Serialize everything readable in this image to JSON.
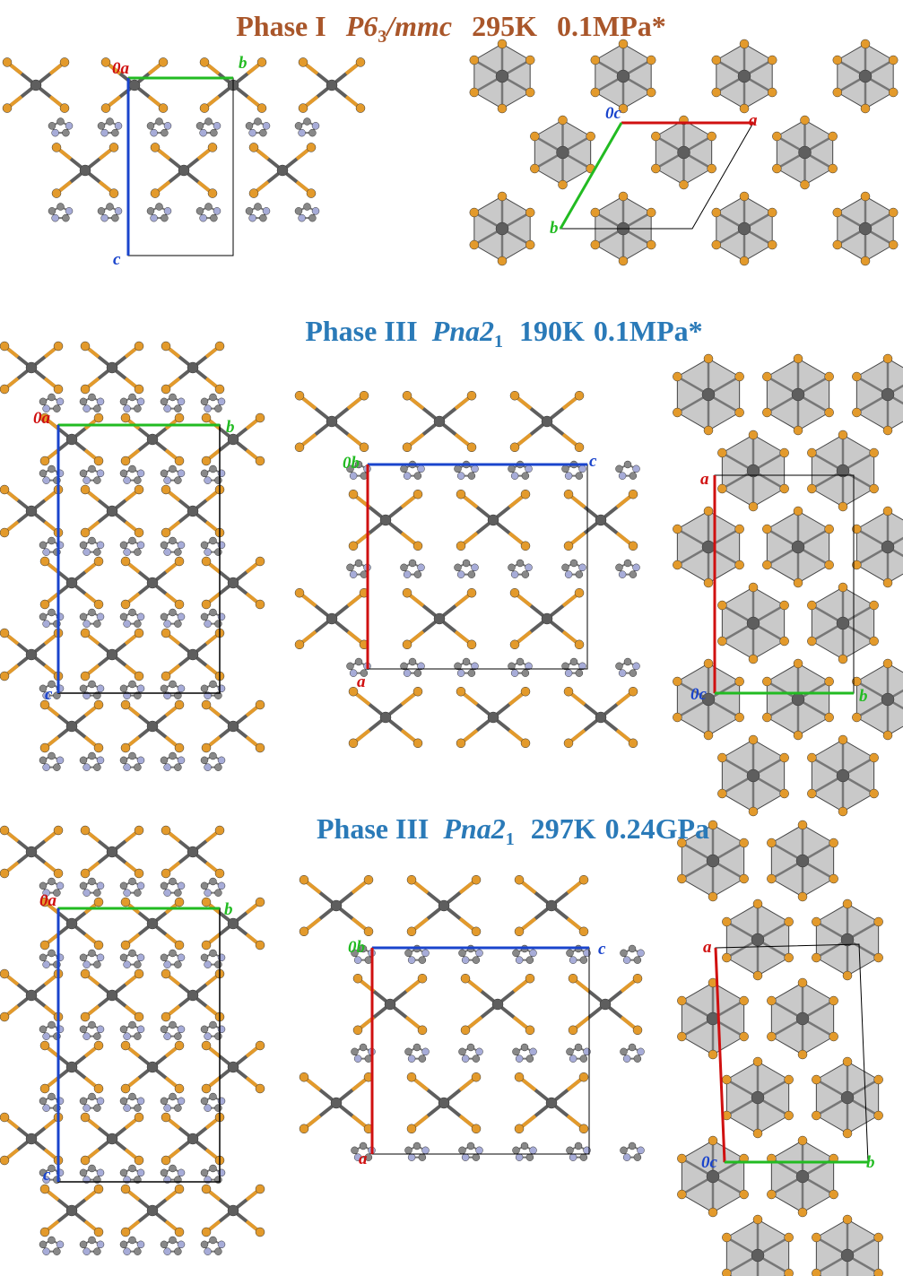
{
  "sections": [
    {
      "title": {
        "phase": "Phase I",
        "space_group": {
          "symbol": "P6",
          "subscript": "3",
          "suffix": "/mmc"
        },
        "temperature": "295K",
        "pressure": "0.1MPa*"
      },
      "views": [
        {
          "labels": [
            "0a",
            "b",
            "c"
          ]
        },
        {
          "labels": [
            "0c",
            "a",
            "b"
          ]
        }
      ]
    },
    {
      "title": {
        "phase": "Phase III",
        "space_group": {
          "symbol": "Pna2",
          "subscript": "1"
        },
        "temperature": "190K",
        "pressure": "0.1MPa*"
      },
      "views": [
        {
          "labels": [
            "0a",
            "b",
            "c"
          ]
        },
        {
          "labels": [
            "0b",
            "c",
            "a"
          ]
        },
        {
          "labels": [
            "a",
            "0c",
            "b"
          ]
        }
      ]
    },
    {
      "title": {
        "phase": "Phase III",
        "space_group": {
          "symbol": "Pna2",
          "subscript": "1"
        },
        "temperature": "297K",
        "pressure": "0.24GPa"
      },
      "views": [
        {
          "labels": [
            "0a",
            "b",
            "c"
          ]
        },
        {
          "labels": [
            "0b",
            "c",
            "a"
          ]
        },
        {
          "labels": [
            "a",
            "0c",
            "b"
          ]
        }
      ]
    }
  ]
}
